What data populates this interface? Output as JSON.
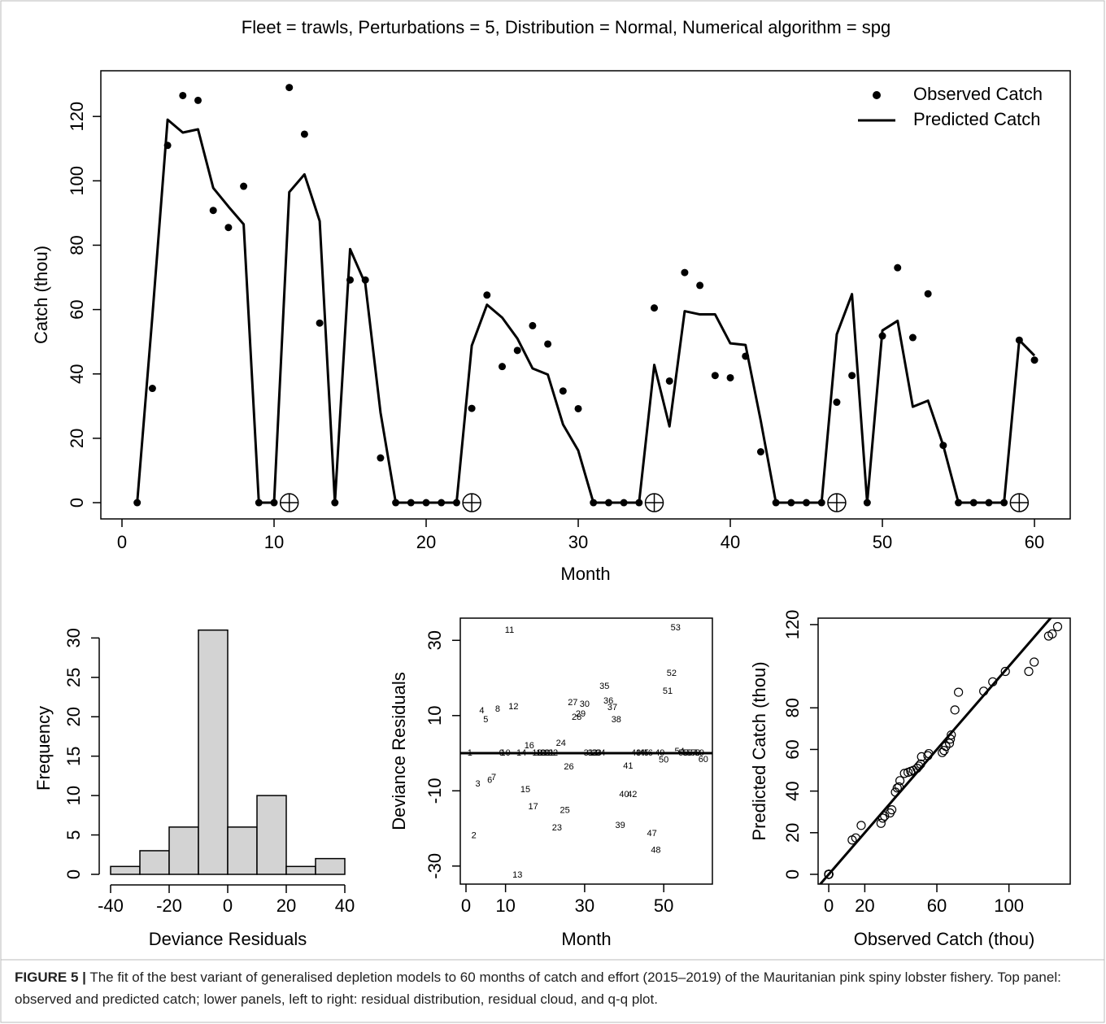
{
  "title": "Fleet = trawls, Perturbations = 5, Distribution = Normal, Numerical algorithm = spg",
  "caption": {
    "label": "FIGURE 5 |",
    "text": "The fit of the best variant of generalised depletion models to 60 months of catch and effort (2015–2019) of the Mauritanian pink spiny lobster fishery. Top panel: observed and predicted catch; lower panels, left to right: residual distribution, residual cloud, and q-q plot."
  },
  "chart_data": [
    {
      "type": "line",
      "x_label": "Month",
      "y_label": "Catch (thou)",
      "x": [
        1,
        2,
        3,
        4,
        5,
        6,
        7,
        8,
        9,
        10,
        11,
        12,
        13,
        14,
        15,
        16,
        17,
        18,
        19,
        20,
        21,
        22,
        23,
        24,
        25,
        26,
        27,
        28,
        29,
        30,
        31,
        32,
        33,
        34,
        35,
        36,
        37,
        38,
        39,
        40,
        41,
        42,
        43,
        44,
        45,
        46,
        47,
        48,
        49,
        50,
        51,
        52,
        53,
        54,
        55,
        56,
        57,
        58,
        59,
        60
      ],
      "series": [
        {
          "name": "Observed Catch",
          "style": "points",
          "color": "#000000",
          "values": [
            0,
            35.5,
            111,
            126.5,
            125,
            90.8,
            85.5,
            98.3,
            0,
            0,
            129,
            114.5,
            55.8,
            0,
            69.2,
            69.2,
            13.9,
            0,
            0,
            0,
            0,
            0,
            29.3,
            64.5,
            42.3,
            47.3,
            55,
            49.3,
            34.7,
            29.2,
            0,
            0,
            0,
            0,
            60.5,
            37.8,
            71.5,
            67.5,
            39.5,
            38.8,
            45.5,
            15.8,
            0,
            0,
            0,
            0,
            31.2,
            39.5,
            0,
            51.8,
            73,
            51.3,
            64.9,
            17.8,
            0,
            0,
            0,
            0,
            50.5,
            44.3
          ]
        },
        {
          "name": "Predicted Catch",
          "style": "line",
          "color": "#000000",
          "values": [
            0,
            58,
            119,
            115,
            116,
            97.8,
            92,
            86.5,
            0,
            0,
            96.5,
            102,
            87.5,
            0,
            78.8,
            68,
            28,
            0,
            0,
            0,
            0,
            0,
            48.8,
            61.5,
            57.5,
            51,
            41.7,
            39.8,
            24.3,
            16.2,
            0,
            0,
            0,
            0,
            42.8,
            23.7,
            59.5,
            58.5,
            58.5,
            49.5,
            49,
            25.5,
            0,
            0,
            0,
            0,
            52.3,
            64.8,
            0,
            53.5,
            56.5,
            29.8,
            31.7,
            17.8,
            0,
            0,
            0,
            0,
            50.5,
            45.7
          ]
        }
      ],
      "perturbations": {
        "x": [
          11,
          23,
          35,
          47,
          59
        ],
        "y": [
          0,
          0,
          0,
          0,
          0
        ]
      },
      "xlim": [
        -1.39,
        62.35
      ],
      "ylim": [
        -5.05,
        134.2
      ],
      "xticks": [
        0,
        10,
        20,
        30,
        40,
        50,
        60
      ],
      "yticks": [
        0,
        20,
        40,
        60,
        80,
        100,
        120
      ],
      "legend": "topright"
    },
    {
      "type": "histogram",
      "x_label": "Deviance Residuals",
      "y_label": "Frequency",
      "bins": [
        -40,
        -30,
        -20,
        -10,
        0,
        10,
        20,
        30,
        40
      ],
      "counts": [
        1,
        3,
        6,
        31,
        6,
        10,
        1,
        2
      ],
      "color": "#d3d3d3",
      "xlim": [
        -40,
        40
      ],
      "ylim": [
        0,
        32
      ],
      "xticks": [
        -40,
        -20,
        0,
        20,
        40
      ],
      "yticks": [
        0,
        5,
        10,
        15,
        20,
        25,
        30
      ]
    },
    {
      "type": "residual-cloud",
      "x_label": "Month",
      "y_label": "Deviance Residuals",
      "x": [
        1,
        2,
        3,
        4,
        5,
        6,
        7,
        8,
        9,
        10,
        11,
        12,
        13,
        14,
        15,
        16,
        17,
        18,
        19,
        20,
        21,
        22,
        23,
        24,
        25,
        26,
        27,
        28,
        29,
        30,
        31,
        32,
        33,
        34,
        35,
        36,
        37,
        38,
        39,
        40,
        41,
        42,
        43,
        44,
        45,
        46,
        47,
        48,
        49,
        50,
        51,
        52,
        53,
        54,
        55,
        56,
        57,
        58,
        59,
        60
      ],
      "values": [
        0,
        -22,
        -8.2,
        11.2,
        8.9,
        -7.3,
        -6.5,
        11.7,
        0,
        0,
        32.6,
        12.3,
        -32.4,
        0,
        -9.7,
        1.9,
        -14.3,
        0,
        0,
        0,
        0,
        0,
        -19.9,
        2.6,
        -15.3,
        -3.7,
        13.4,
        9.5,
        10.4,
        13,
        0,
        0,
        0,
        0,
        17.7,
        13.8,
        12.1,
        8.9,
        -19.2,
        -11,
        -3.5,
        -11,
        0,
        0,
        0,
        0,
        -21.4,
        -25.9,
        0,
        -1.9,
        16.4,
        21.2,
        33.3,
        0.4,
        0,
        0,
        0,
        0,
        0,
        -1.7
      ],
      "hline": 0,
      "xlim": [
        -1.44,
        62.3
      ],
      "ylim": [
        -34.8,
        35.9
      ],
      "xticks": [
        0,
        10,
        30,
        50
      ],
      "yticks": [
        -30,
        -10,
        10,
        30
      ]
    },
    {
      "type": "qq",
      "x_label": "Observed Catch (thou)",
      "y_label": "Predicted Catch (thou)",
      "x": [
        0,
        0,
        0,
        0,
        0,
        0,
        0,
        0,
        0,
        0,
        0,
        0,
        0,
        0,
        0,
        0,
        0,
        0,
        0,
        0,
        0,
        0,
        13,
        15,
        18,
        29,
        30,
        31,
        34,
        35,
        37,
        38,
        39,
        39.5,
        42,
        44,
        45.5,
        47,
        49,
        50,
        51,
        51.5,
        55,
        55.5,
        63,
        64,
        65,
        67,
        67.5,
        68,
        70,
        72,
        86,
        91,
        98,
        111,
        114,
        122,
        124,
        127
      ],
      "values": [
        0,
        0,
        0,
        0,
        0,
        0,
        0,
        0,
        0,
        0,
        0,
        0,
        0,
        0,
        0,
        0,
        0,
        0,
        0,
        0,
        0,
        0,
        16.5,
        17.5,
        23.5,
        24.5,
        27,
        28,
        29.5,
        31,
        39.5,
        41.5,
        42,
        45,
        48.5,
        49,
        49.5,
        50,
        51,
        52,
        53,
        56.5,
        57,
        58,
        58.5,
        59.5,
        61.5,
        63,
        65,
        67,
        79,
        87.5,
        88,
        92.5,
        97.5,
        97.5,
        102,
        114.5,
        115.5,
        119
      ],
      "reference_line": {
        "intercept": 0,
        "slope": 1
      },
      "xlim": [
        -5.9,
        134
      ],
      "ylim": [
        -4.7,
        123.1
      ],
      "xticks": [
        0,
        20,
        60,
        100
      ],
      "yticks": [
        0,
        20,
        40,
        60,
        80,
        120
      ]
    }
  ]
}
